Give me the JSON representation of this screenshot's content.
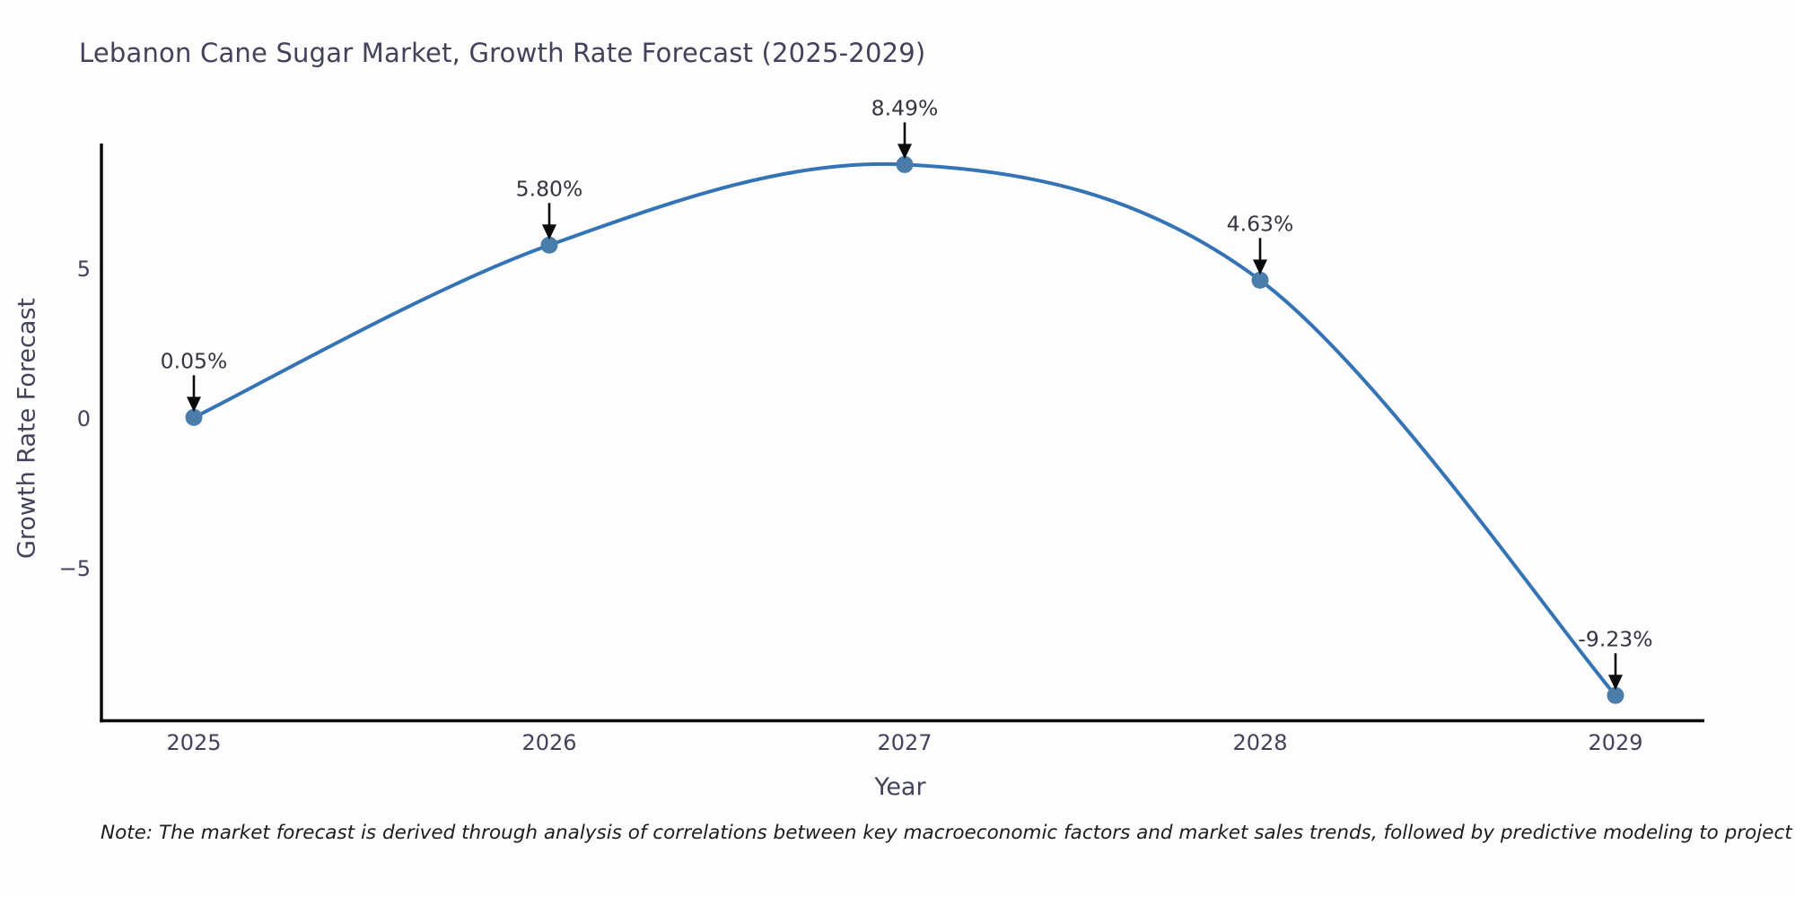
{
  "chart_data": {
    "type": "line",
    "title": "Lebanon Cane Sugar Market, Growth Rate Forecast (2025-2029)",
    "xlabel": "Year",
    "ylabel": "Growth Rate Forecast",
    "x": [
      2025,
      2026,
      2027,
      2028,
      2029
    ],
    "values": [
      0.05,
      5.8,
      8.49,
      4.63,
      -9.23
    ],
    "point_labels": [
      "0.05%",
      "5.80%",
      "8.49%",
      "4.63%",
      "-9.23%"
    ],
    "x_tick_labels": [
      "2025",
      "2026",
      "2027",
      "2028",
      "2029"
    ],
    "y_ticks": [
      {
        "value": 5,
        "label": "5"
      },
      {
        "value": 0,
        "label": "0"
      },
      {
        "value": -5,
        "label": "−5"
      }
    ],
    "ylim": [
      -10.1,
      9.2
    ],
    "grid": false,
    "legend": "none",
    "line_color": "#3474b4",
    "marker_color": "#4a7daa",
    "axis_color": "#0c0c0c",
    "tick_text_color": "#42425b",
    "annotation_text_color": "#35353f",
    "annotation_arrow_color": "#0c0c0c",
    "note": "Note: The market forecast is derived through analysis of correlations between key macroeconomic factors and market sales trends, followed by predictive modeling to project future sales"
  }
}
